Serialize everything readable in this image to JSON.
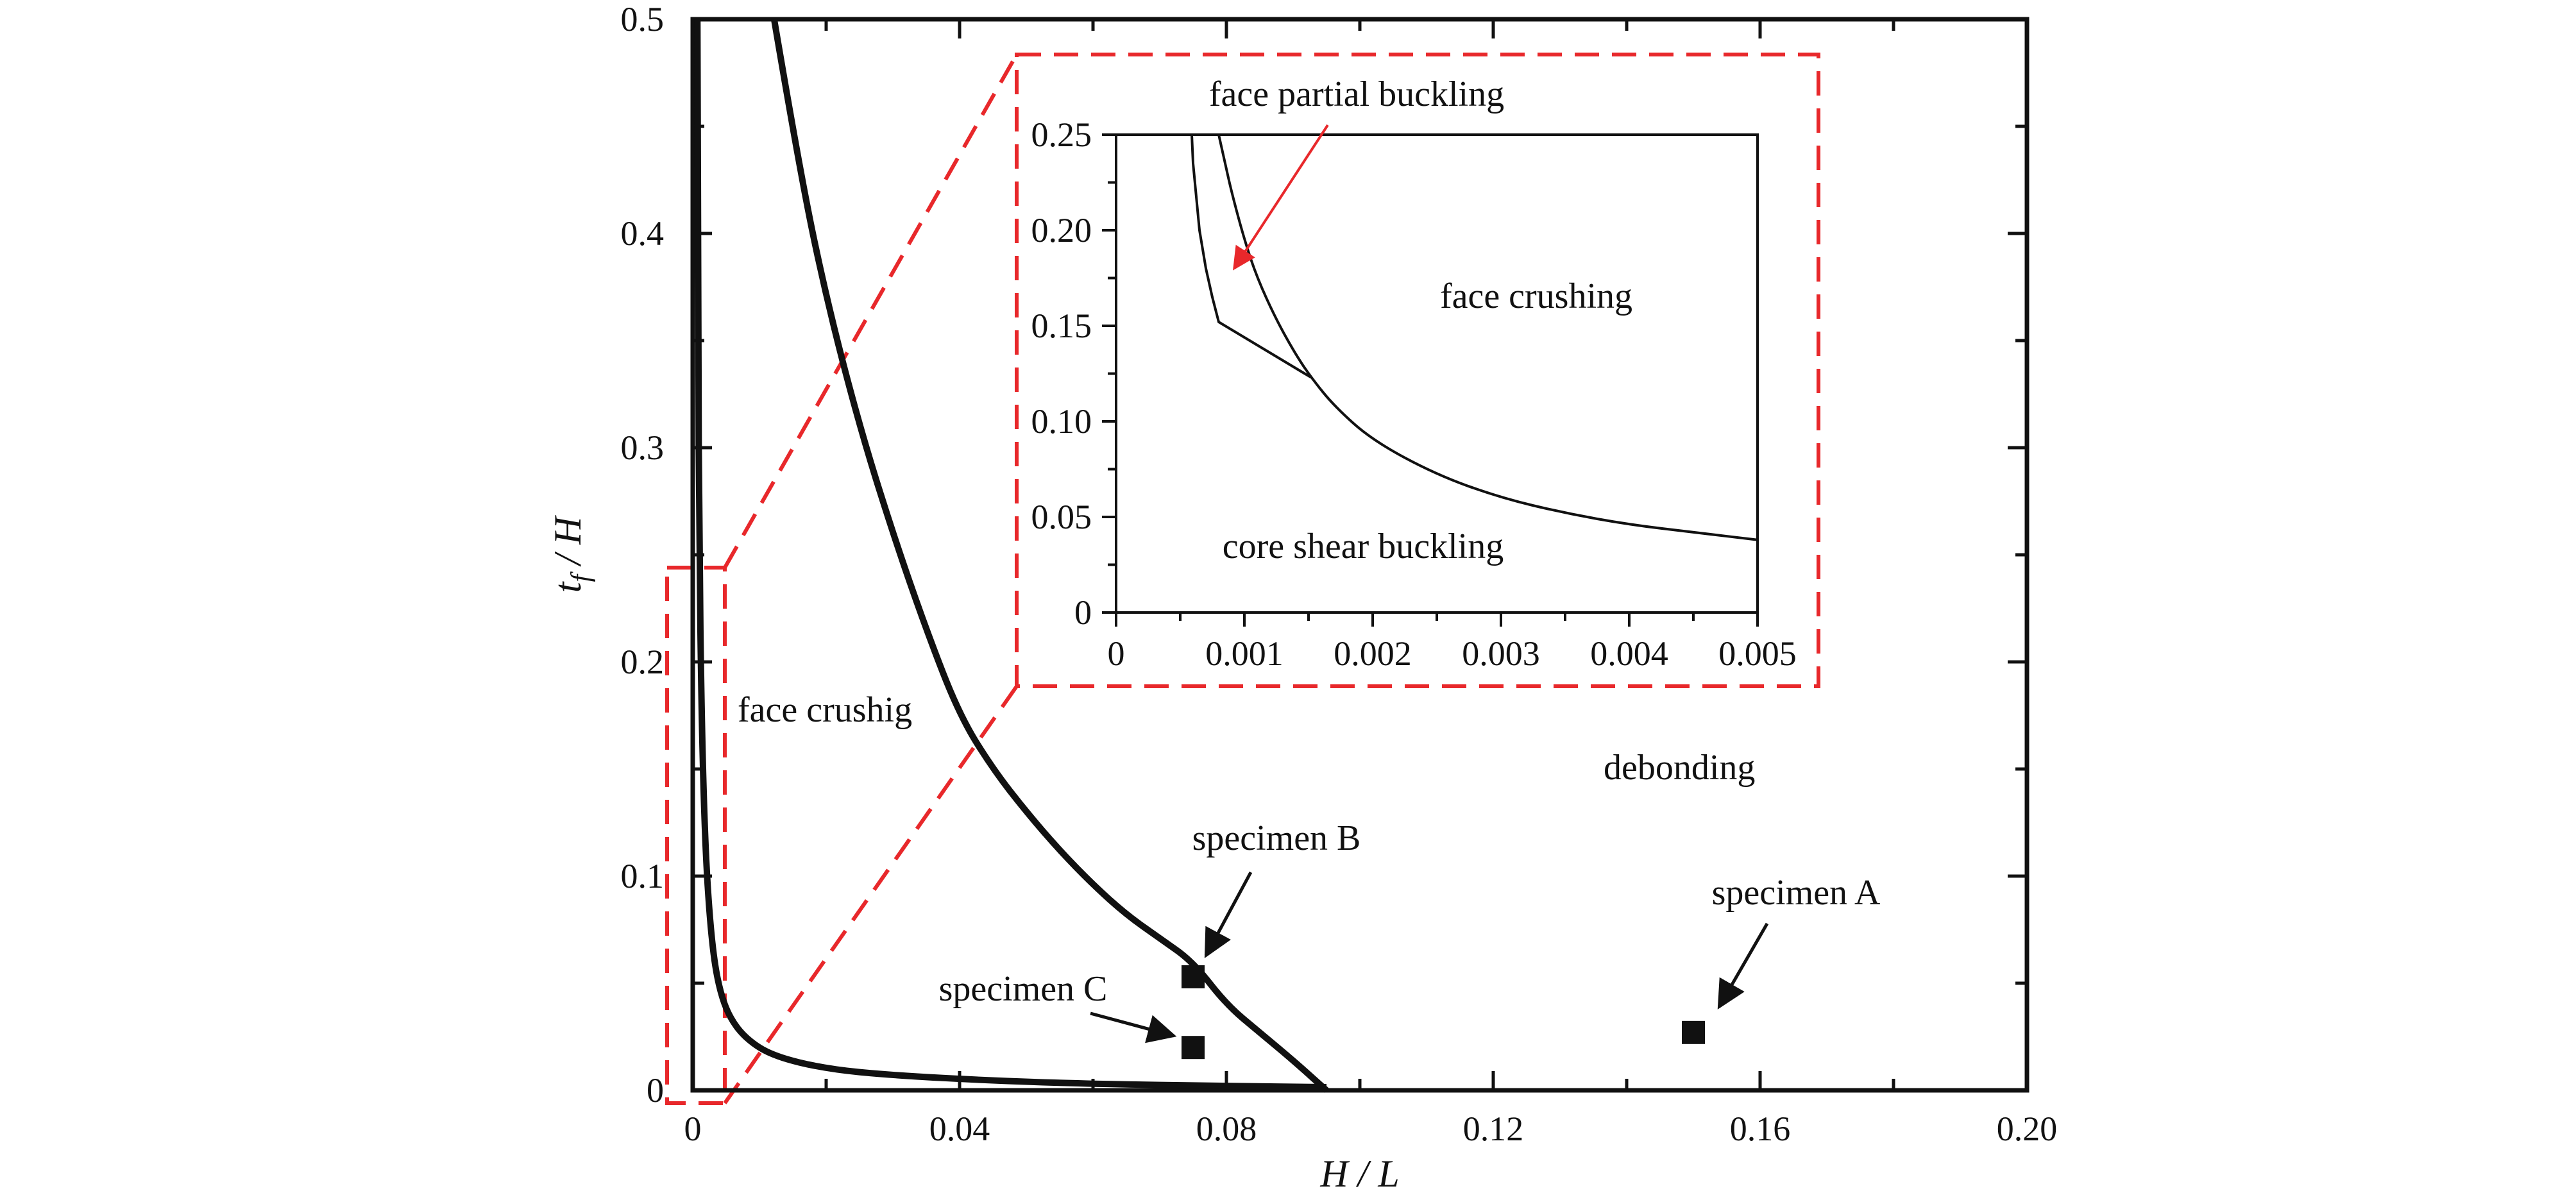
{
  "colors": {
    "curves": "#111111",
    "highlight": "#e8282b",
    "markers": "#111111"
  },
  "chart_data": [
    {
      "type": "line",
      "title": "",
      "xlabel": "H / L",
      "ylabel_main": "t",
      "ylabel_sub": "f",
      "ylabel_suffix": " / H",
      "xlim": [
        0,
        0.2
      ],
      "ylim": [
        0,
        0.5
      ],
      "xticks": [
        0,
        0.04,
        0.08,
        0.12,
        0.16,
        0.2
      ],
      "xtick_labels": [
        "0",
        "0.04",
        "0.08",
        "0.12",
        "0.16",
        "0.20"
      ],
      "yticks": [
        0,
        0.1,
        0.2,
        0.3,
        0.4,
        0.5
      ],
      "ytick_labels": [
        "0",
        "0.1",
        "0.2",
        "0.3",
        "0.4",
        "0.5"
      ],
      "grid": false,
      "series": [
        {
          "x": [
            0.0122,
            0.016,
            0.02,
            0.025,
            0.03,
            0.035,
            0.04,
            0.045,
            0.05,
            0.055,
            0.06,
            0.065,
            0.07,
            0.075,
            0.08,
            0.085,
            0.09,
            0.095
          ],
          "y": [
            0.5,
            0.43,
            0.37,
            0.31,
            0.26,
            0.215,
            0.175,
            0.15,
            0.13,
            0.112,
            0.096,
            0.082,
            0.071,
            0.06,
            0.04,
            0.027,
            0.014,
            0
          ]
        },
        {
          "x": [
            0.0007,
            0.0008,
            0.001,
            0.0013,
            0.0017,
            0.0022,
            0.003,
            0.004,
            0.0055,
            0.008,
            0.012,
            0.02,
            0.03,
            0.045,
            0.06,
            0.08,
            0.095
          ],
          "y": [
            0.5,
            0.35,
            0.25,
            0.18,
            0.13,
            0.095,
            0.065,
            0.047,
            0.034,
            0.024,
            0.016,
            0.01,
            0.007,
            0.0045,
            0.003,
            0.002,
            0.0015
          ]
        }
      ],
      "specimens": [
        {
          "label": "specimen A",
          "x": 0.15,
          "y": 0.027
        },
        {
          "label": "specimen B",
          "x": 0.075,
          "y": 0.053
        },
        {
          "label": "specimen C",
          "x": 0.075,
          "y": 0.02
        }
      ],
      "annotations": [
        "face crushig",
        "debonding"
      ]
    },
    {
      "type": "line",
      "title": "",
      "xlim": [
        0,
        0.005
      ],
      "ylim": [
        0,
        0.25
      ],
      "xticks": [
        0,
        0.001,
        0.002,
        0.003,
        0.004,
        0.005
      ],
      "xtick_labels": [
        "0",
        "0.001",
        "0.002",
        "0.003",
        "0.004",
        "0.005"
      ],
      "yticks": [
        0,
        0.05,
        0.1,
        0.15,
        0.2,
        0.25
      ],
      "ytick_labels": [
        "0",
        "0.05",
        "0.10",
        "0.15",
        "0.20",
        "0.25"
      ],
      "grid": false,
      "series": [
        {
          "x": [
            0.00059,
            0.0006,
            0.00065,
            0.0007,
            0.00075,
            0.0008,
            0.00152
          ],
          "y": [
            0.25,
            0.235,
            0.2,
            0.18,
            0.165,
            0.152,
            0.123
          ]
        },
        {
          "x": [
            0.0008,
            0.00085,
            0.0009,
            0.001,
            0.0011,
            0.00125,
            0.0014,
            0.00152,
            0.0017,
            0.002,
            0.0025,
            0.003,
            0.0035,
            0.004,
            0.0045,
            0.005
          ],
          "y": [
            0.25,
            0.235,
            0.22,
            0.195,
            0.175,
            0.153,
            0.135,
            0.123,
            0.108,
            0.09,
            0.072,
            0.06,
            0.052,
            0.046,
            0.042,
            0.038
          ]
        }
      ],
      "annotations": [
        "face partial buckling",
        "face crushing",
        "core shear buckling"
      ],
      "arrow_target": {
        "x": 0.00092,
        "y": 0.18
      }
    }
  ]
}
